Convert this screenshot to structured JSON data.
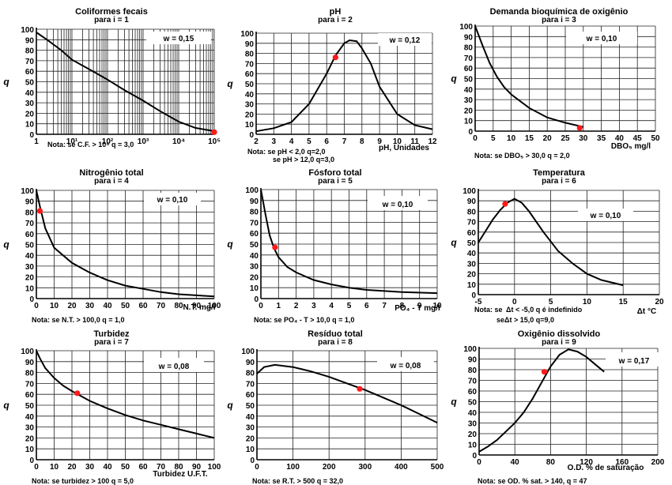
{
  "chart_data": [
    {
      "type": "line",
      "title": "Coliformes fecais",
      "subtitle": "para i = 1",
      "ylabel": "q",
      "xlabel": "",
      "weight_label": "w = 0,15",
      "xscale": "log",
      "xlim": [
        1,
        100000
      ],
      "ylim": [
        0,
        100
      ],
      "xticks": [
        1,
        10,
        100,
        1000,
        10000,
        100000
      ],
      "xtick_labels": [
        "1",
        "10¹",
        "10²",
        "10³",
        "10⁴",
        "10⁵"
      ],
      "yticks": [
        0,
        10,
        20,
        30,
        40,
        50,
        60,
        70,
        80,
        90,
        100
      ],
      "x": [
        1,
        2,
        5,
        10,
        30,
        100,
        300,
        1000,
        3000,
        10000,
        30000,
        100000
      ],
      "y": [
        97,
        90,
        80,
        71,
        62,
        52,
        42,
        32,
        22,
        12,
        6,
        3
      ],
      "point": [
        100000,
        2
      ],
      "notes": [
        "Nota: se C.F. > 10⁵ q = 3,0"
      ]
    },
    {
      "type": "line",
      "title": "pH",
      "subtitle": "para i = 2",
      "ylabel": "q",
      "xlabel": "pH, Unidades",
      "weight_label": "w = 0,12",
      "xlim": [
        2,
        12
      ],
      "ylim": [
        0,
        100
      ],
      "xticks": [
        2,
        3,
        4,
        5,
        6,
        7,
        8,
        9,
        10,
        11,
        12
      ],
      "yticks": [
        0,
        10,
        20,
        30,
        40,
        50,
        60,
        70,
        80,
        90,
        100
      ],
      "x": [
        2,
        3,
        4,
        5,
        6,
        6.5,
        7,
        7.3,
        7.7,
        8,
        8.5,
        9,
        10,
        11,
        12
      ],
      "y": [
        3,
        6,
        12,
        30,
        60,
        78,
        90,
        93,
        92,
        85,
        70,
        47,
        20,
        9,
        5
      ],
      "point": [
        6.5,
        76
      ],
      "notes": [
        "Nota: se pH <  2,0   q=2,0",
        "se pH > 12,0  q=3,0"
      ]
    },
    {
      "type": "line",
      "title": "Demanda bioquímica de oxigênio",
      "subtitle": "para i = 3",
      "ylabel": "q",
      "xlabel": "DBO₅ mg/l",
      "weight_label": "w = 0,10",
      "xlim": [
        0,
        50
      ],
      "ylim": [
        0,
        100
      ],
      "xticks": [
        0,
        5,
        10,
        15,
        20,
        25,
        30,
        35,
        40,
        45,
        50
      ],
      "yticks": [
        0,
        10,
        20,
        30,
        40,
        50,
        60,
        70,
        80,
        90,
        100
      ],
      "x": [
        0,
        2,
        4,
        6,
        8,
        10,
        15,
        20,
        25,
        30
      ],
      "y": [
        100,
        82,
        65,
        52,
        42,
        35,
        22,
        13,
        8,
        4
      ],
      "point": [
        29,
        3
      ],
      "notes": [
        "Nota: se DBO₅ > 30,0 q = 2,0"
      ]
    },
    {
      "type": "line",
      "title": "Nitrogênio total",
      "subtitle": "para i = 4",
      "ylabel": "q",
      "xlabel": "N.T. mg/l",
      "weight_label": "w = 0,10",
      "xlim": [
        0,
        100
      ],
      "ylim": [
        0,
        100
      ],
      "xticks": [
        0,
        10,
        20,
        30,
        40,
        50,
        60,
        70,
        80,
        90,
        100
      ],
      "yticks": [
        0,
        10,
        20,
        30,
        40,
        50,
        60,
        70,
        80,
        90,
        100
      ],
      "x": [
        0,
        2,
        5,
        10,
        20,
        30,
        40,
        50,
        60,
        70,
        80,
        90,
        100
      ],
      "y": [
        100,
        85,
        65,
        47,
        33,
        24,
        17,
        12,
        9,
        6,
        4,
        3,
        2
      ],
      "point": [
        2,
        81
      ],
      "notes": [
        "Nota: se N.T. > 100,0 q = 1,0"
      ]
    },
    {
      "type": "line",
      "title": "Fósforo total",
      "subtitle": "para i = 5",
      "ylabel": "q",
      "xlabel": "PO₄ - T mg/l",
      "weight_label": "w = 0,10",
      "xlim": [
        0,
        10
      ],
      "ylim": [
        0,
        100
      ],
      "xticks": [
        0,
        1,
        2,
        3,
        4,
        5,
        6,
        7,
        8,
        9,
        10
      ],
      "yticks": [
        0,
        10,
        20,
        30,
        40,
        50,
        60,
        70,
        80,
        90,
        100
      ],
      "x": [
        0,
        0.25,
        0.5,
        0.75,
        1,
        1.5,
        2,
        3,
        4,
        5,
        6,
        8,
        10
      ],
      "y": [
        100,
        78,
        58,
        46,
        38,
        29,
        24,
        17,
        13,
        10,
        8,
        6,
        5
      ],
      "point": [
        0.8,
        47
      ],
      "notes": [
        "Nota: se PO₄ - T > 10,0 q = 1,0"
      ]
    },
    {
      "type": "line",
      "title": "Temperatura",
      "subtitle": "para i = 6",
      "ylabel": "q",
      "xlabel": "Δt °C",
      "weight_label": "w = 0,10",
      "xlim": [
        -5,
        20
      ],
      "ylim": [
        0,
        100
      ],
      "xticks": [
        -5,
        0,
        5,
        10,
        15,
        20
      ],
      "yticks": [
        0,
        10,
        20,
        30,
        40,
        50,
        60,
        70,
        80,
        90,
        100
      ],
      "x": [
        -5,
        -4,
        -3,
        -2,
        -1,
        0,
        1,
        2,
        4,
        6,
        8,
        10,
        12,
        15
      ],
      "y": [
        50,
        61,
        72,
        81,
        88,
        92,
        88,
        80,
        60,
        42,
        30,
        20,
        14,
        9
      ],
      "point": [
        -1.3,
        87
      ],
      "notes": [
        "Nota: se",
        "Δt < -5,0   q é indefinido",
        "se",
        "Δt > 15,0  q=9,0"
      ]
    },
    {
      "type": "line",
      "title": "Turbidez",
      "subtitle": "para i = 7",
      "ylabel": "q",
      "xlabel": "Turbidez U.F.T.",
      "weight_label": "w = 0,08",
      "xlim": [
        0,
        100
      ],
      "ylim": [
        0,
        100
      ],
      "xticks": [
        0,
        10,
        20,
        30,
        40,
        50,
        60,
        70,
        80,
        90,
        100
      ],
      "yticks": [
        0,
        10,
        20,
        30,
        40,
        50,
        60,
        70,
        80,
        90,
        100
      ],
      "x": [
        0,
        2,
        5,
        10,
        15,
        20,
        30,
        40,
        50,
        60,
        70,
        80,
        90,
        100
      ],
      "y": [
        100,
        93,
        84,
        75,
        68,
        63,
        54,
        47,
        41,
        36,
        32,
        28,
        24,
        20
      ],
      "point": [
        23,
        61
      ],
      "notes": [
        "Nota: se turbidez > 100 q = 5,0"
      ]
    },
    {
      "type": "line",
      "title": "Resíduo total",
      "subtitle": "para i = 8",
      "ylabel": "q",
      "xlabel": "",
      "weight_label": "w = 0,08",
      "xlim": [
        0,
        500
      ],
      "ylim": [
        0,
        100
      ],
      "xticks": [
        0,
        100,
        200,
        300,
        400,
        500
      ],
      "yticks": [
        0,
        10,
        20,
        30,
        40,
        50,
        60,
        70,
        80,
        90,
        100
      ],
      "x": [
        0,
        20,
        50,
        100,
        150,
        200,
        250,
        300,
        350,
        400,
        450,
        500
      ],
      "y": [
        79,
        85,
        87,
        85,
        81,
        76,
        70,
        64,
        57,
        50,
        42,
        34
      ],
      "point": [
        285,
        65
      ],
      "notes": [
        "Nota: se R.T. > 500 q = 32,0"
      ]
    },
    {
      "type": "line",
      "title": "Oxigênio dissolvido",
      "subtitle": "para i = 9",
      "ylabel": "q",
      "xlabel": "O.D. % de saturação",
      "weight_label": "w = 0,17",
      "xlim": [
        0,
        200
      ],
      "ylim": [
        0,
        100
      ],
      "xticks": [
        0,
        40,
        80,
        120,
        160,
        200
      ],
      "yticks": [
        0,
        10,
        20,
        30,
        40,
        50,
        60,
        70,
        80,
        90,
        100
      ],
      "x": [
        0,
        10,
        20,
        30,
        40,
        50,
        60,
        70,
        80,
        90,
        100,
        110,
        120,
        130,
        140
      ],
      "y": [
        3,
        8,
        14,
        22,
        30,
        40,
        53,
        68,
        83,
        94,
        99,
        97,
        92,
        85,
        78
      ],
      "point": [
        73,
        78
      ],
      "notes": [
        "Nota: se OD. % sat. > 140, q = 47"
      ]
    }
  ]
}
